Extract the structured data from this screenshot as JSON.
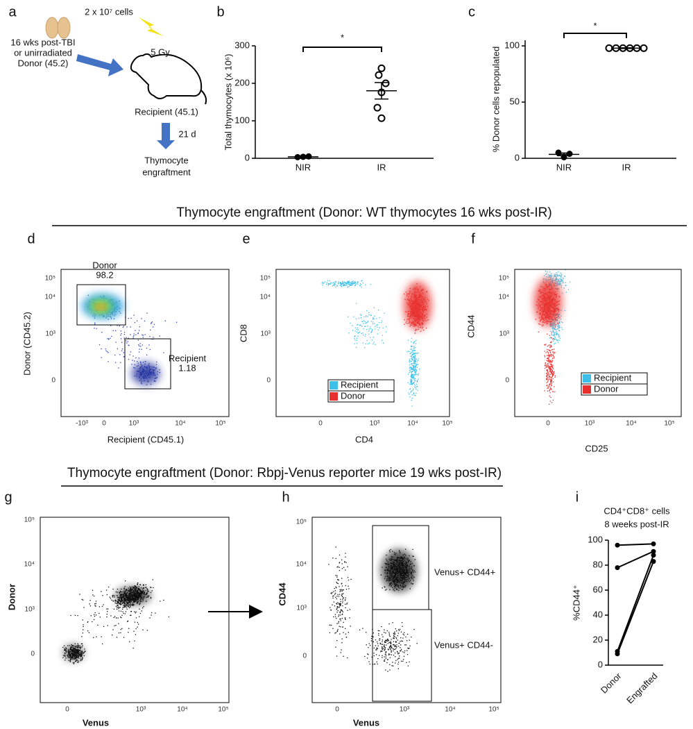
{
  "panel_labels": [
    "a",
    "b",
    "c",
    "d",
    "e",
    "f",
    "g",
    "h",
    "i"
  ],
  "schematic": {
    "cells": "2 x 10⁷ cells",
    "donor": [
      "16 wks post-TBI",
      "or unirradiated",
      "Donor (45.2)"
    ],
    "dose": "5 Gy",
    "recipient": "Recipient (45.1)",
    "days": "21 d",
    "outcome": [
      "Thymocyte",
      "engraftment"
    ]
  },
  "section_titles": [
    "Thymocyte engraftment (Donor: WT thymocytes 16 wks post-IR)",
    "Thymocyte engraftment (Donor: Rbpj-Venus reporter mice 19 wks post-IR)"
  ],
  "flow_plots": [
    {
      "xlabel": "Recipient (CD45.1)",
      "ylabel": "Donor (CD45.2)",
      "xticks": [
        "-10³",
        "0",
        "10³",
        "10⁴",
        "10⁵"
      ],
      "yticks": [
        "0",
        "10³",
        "10⁴",
        "10⁵"
      ],
      "gates": [
        {
          "label": [
            "Donor",
            "98.2"
          ]
        },
        {
          "label": [
            "Recipient",
            "1.18"
          ]
        }
      ]
    },
    {
      "xlabel": "CD4",
      "ylabel": "CD8",
      "xticks": [
        "0",
        "10³",
        "10⁴",
        "10⁵"
      ],
      "yticks": [
        "0",
        "10³",
        "10⁴",
        "10⁵"
      ],
      "legend": [
        {
          "name": "Recipient",
          "color": "#3cc0ea"
        },
        {
          "name": "Donor",
          "color": "#e8302e"
        }
      ]
    },
    {
      "xlabel": "CD25",
      "ylabel": "CD44",
      "xticks": [
        "0",
        "10³",
        "10⁴",
        "10⁵"
      ],
      "yticks": [
        "0",
        "10³",
        "10⁴",
        "10⁵"
      ],
      "legend": [
        {
          "name": "Recipient",
          "color": "#3cc0ea"
        },
        {
          "name": "Donor",
          "color": "#e8302e"
        }
      ]
    },
    {
      "xlabel": "Venus",
      "ylabel": "Donor",
      "xticks": [
        "0",
        "10³",
        "10⁴",
        "10⁵"
      ],
      "yticks": [
        "0",
        "10³",
        "10⁴",
        "10⁵"
      ]
    },
    {
      "xlabel": "Venus",
      "ylabel": "CD44",
      "xticks": [
        "0",
        "10³",
        "10⁴",
        "10⁵"
      ],
      "yticks": [
        "0",
        "10³",
        "10⁴",
        "10⁵"
      ],
      "gates": [
        {
          "label": [
            "Venus+ CD44+"
          ]
        },
        {
          "label": [
            "Venus+ CD44-"
          ]
        }
      ]
    }
  ],
  "chart_data": [
    {
      "type": "dot",
      "ylabel": "Total thymocytes (x 10⁶)",
      "categories": [
        "NIR",
        "IR"
      ],
      "points": [
        [
          3,
          5,
          4
        ],
        [
          240,
          222,
          200,
          176,
          135,
          107
        ]
      ],
      "means": [
        4,
        180
      ],
      "errors": [
        1,
        22
      ],
      "significance": "*",
      "ylim": [
        0,
        300
      ],
      "yticks": [
        0,
        100,
        200,
        300
      ]
    },
    {
      "type": "dot",
      "ylabel": "% Donor cells repopulated",
      "categories": [
        "NIR",
        "IR"
      ],
      "points": [
        [
          5,
          4,
          1
        ],
        [
          98,
          98,
          98,
          98,
          98,
          98
        ]
      ],
      "means": [
        3.5,
        98
      ],
      "errors": [
        1.2,
        0.3
      ],
      "significance": "*",
      "ylim": [
        0,
        105
      ],
      "yticks": [
        0,
        50,
        100
      ]
    },
    {
      "type": "line",
      "title": [
        "CD4⁺CD8⁺ cells",
        "8 weeks post-IR"
      ],
      "ylabel": "%CD44⁺",
      "categories": [
        "Donor",
        "Engrafted"
      ],
      "series": [
        {
          "color": "#000000",
          "values": [
            96,
            97
          ]
        },
        {
          "color": "#000000",
          "values": [
            78,
            91
          ]
        },
        {
          "color": "#000000",
          "values": [
            11,
            88
          ]
        },
        {
          "color": "#000000",
          "values": [
            9,
            83
          ]
        }
      ],
      "ylim": [
        0,
        100
      ],
      "yticks": [
        0,
        20,
        40,
        60,
        80,
        100
      ]
    }
  ]
}
